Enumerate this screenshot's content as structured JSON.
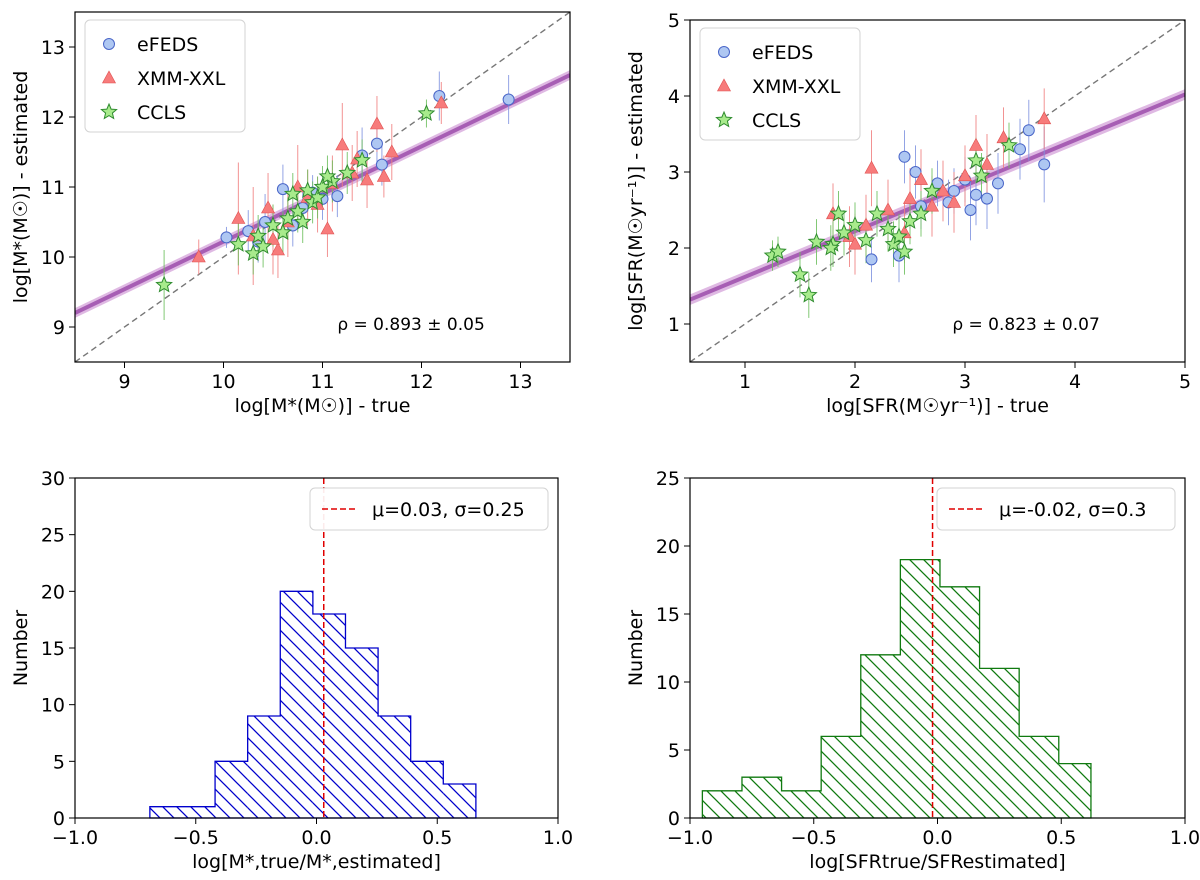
{
  "chart_data": [
    {
      "id": "mass-scatter",
      "type": "scatter",
      "xlabel": "log[M*(M☉)] - true",
      "ylabel": "log[M*(M☉)] - estimated",
      "xlim": [
        8.5,
        13.5
      ],
      "ylim": [
        8.5,
        13.5
      ],
      "xticks": [
        9,
        10,
        11,
        12,
        13
      ],
      "yticks": [
        9,
        10,
        11,
        12,
        13
      ],
      "legend_position": "top-left",
      "annotation": "ρ = 0.893 ± 0.05",
      "fit": {
        "slope": 0.68,
        "intercept": 3.42,
        "band": 0.07
      },
      "series": [
        {
          "name": "eFEDS",
          "marker": "circle",
          "color": "#aec7f2",
          "edge": "#4a66c8",
          "errcolor": "#8093e0",
          "points": [
            [
              10.03,
              10.28,
              0.15
            ],
            [
              10.25,
              10.37,
              0.3
            ],
            [
              10.42,
              10.5,
              0.4
            ],
            [
              10.6,
              10.97,
              0.35
            ],
            [
              10.8,
              10.7,
              0.3
            ],
            [
              10.9,
              10.92,
              0.25
            ],
            [
              11.0,
              10.83,
              0.3
            ],
            [
              11.15,
              10.87,
              0.3
            ],
            [
              11.4,
              11.45,
              0.4
            ],
            [
              11.55,
              11.62,
              0.3
            ],
            [
              11.6,
              11.32,
              0.3
            ],
            [
              12.18,
              12.3,
              0.35
            ],
            [
              12.88,
              12.25,
              0.35
            ],
            [
              10.35,
              10.22,
              0.3
            ],
            [
              10.7,
              10.45,
              0.3
            ]
          ]
        },
        {
          "name": "XMM-XXL",
          "marker": "triangle",
          "color": "#f77b7b",
          "edge": "#e05050",
          "errcolor": "#f08080",
          "points": [
            [
              9.75,
              10.0,
              0.25
            ],
            [
              10.15,
              10.55,
              0.8
            ],
            [
              10.3,
              10.3,
              0.7
            ],
            [
              10.45,
              10.7,
              0.5
            ],
            [
              10.55,
              10.1,
              0.4
            ],
            [
              10.65,
              10.5,
              0.5
            ],
            [
              10.75,
              11.0,
              0.6
            ],
            [
              10.85,
              10.85,
              0.4
            ],
            [
              10.95,
              10.75,
              0.4
            ],
            [
              11.05,
              10.4,
              0.4
            ],
            [
              11.1,
              11.05,
              0.4
            ],
            [
              11.2,
              11.6,
              0.6
            ],
            [
              11.3,
              11.2,
              0.4
            ],
            [
              11.45,
              11.1,
              0.4
            ],
            [
              11.55,
              11.9,
              0.4
            ],
            [
              11.62,
              11.15,
              0.3
            ],
            [
              11.7,
              11.5,
              0.4
            ],
            [
              12.2,
              12.2,
              0.3
            ],
            [
              10.5,
              10.25,
              0.5
            ],
            [
              11.35,
              11.4,
              0.4
            ]
          ]
        },
        {
          "name": "CCLS",
          "marker": "star",
          "color": "#a8eb8c",
          "edge": "#2f8c2f",
          "errcolor": "#6dbf5d",
          "points": [
            [
              9.4,
              9.6,
              0.5
            ],
            [
              10.15,
              10.18,
              0.3
            ],
            [
              10.3,
              10.05,
              0.3
            ],
            [
              10.35,
              10.3,
              0.3
            ],
            [
              10.5,
              10.45,
              0.3
            ],
            [
              10.6,
              10.35,
              0.3
            ],
            [
              10.65,
              10.55,
              0.3
            ],
            [
              10.75,
              10.65,
              0.3
            ],
            [
              10.8,
              10.5,
              0.3
            ],
            [
              10.9,
              10.78,
              0.3
            ],
            [
              10.95,
              10.85,
              0.3
            ],
            [
              11.0,
              11.0,
              0.3
            ],
            [
              11.1,
              11.08,
              0.3
            ],
            [
              11.25,
              11.2,
              0.3
            ],
            [
              11.4,
              11.38,
              0.3
            ],
            [
              12.05,
              12.05,
              0.2
            ],
            [
              10.4,
              10.15,
              0.3
            ],
            [
              10.7,
              10.9,
              0.3
            ],
            [
              10.85,
              10.95,
              0.3
            ],
            [
              11.05,
              11.15,
              0.3
            ]
          ]
        }
      ]
    },
    {
      "id": "sfr-scatter",
      "type": "scatter",
      "xlabel": "log[SFR(M☉yr⁻¹)] - true",
      "ylabel": "log[SFR(M☉yr⁻¹)] - estimated",
      "xlim": [
        0.5,
        5.0
      ],
      "ylim": [
        0.5,
        5.0
      ],
      "xticks": [
        1,
        2,
        3,
        4,
        5
      ],
      "yticks": [
        1,
        2,
        3,
        4,
        5
      ],
      "legend_position": "top-left",
      "annotation": "ρ = 0.823 ± 0.07",
      "fit": {
        "slope": 0.6,
        "intercept": 1.02,
        "band": 0.07
      },
      "series": [
        {
          "name": "eFEDS",
          "marker": "circle",
          "color": "#aec7f2",
          "edge": "#4a66c8",
          "errcolor": "#8093e0",
          "points": [
            [
              2.15,
              1.85,
              0.3
            ],
            [
              2.4,
              1.9,
              0.35
            ],
            [
              2.45,
              3.2,
              0.35
            ],
            [
              2.55,
              3.0,
              0.35
            ],
            [
              2.6,
              2.55,
              0.3
            ],
            [
              2.75,
              2.85,
              0.3
            ],
            [
              2.85,
              2.6,
              0.3
            ],
            [
              2.9,
              2.75,
              0.3
            ],
            [
              3.05,
              2.5,
              0.4
            ],
            [
              3.1,
              2.7,
              0.4
            ],
            [
              3.2,
              2.65,
              0.4
            ],
            [
              3.3,
              2.85,
              0.4
            ],
            [
              3.5,
              3.3,
              0.4
            ],
            [
              3.58,
              3.55,
              0.4
            ],
            [
              3.72,
              3.1,
              0.5
            ],
            [
              3.0,
              2.9,
              0.3
            ]
          ]
        },
        {
          "name": "XMM-XXL",
          "marker": "triangle",
          "color": "#f77b7b",
          "edge": "#e05050",
          "errcolor": "#f08080",
          "points": [
            [
              1.8,
              2.45,
              0.4
            ],
            [
              1.95,
              2.15,
              0.4
            ],
            [
              2.1,
              2.3,
              0.4
            ],
            [
              2.15,
              3.05,
              0.5
            ],
            [
              2.3,
              2.5,
              0.4
            ],
            [
              2.45,
              2.2,
              0.4
            ],
            [
              2.6,
              2.9,
              0.4
            ],
            [
              2.7,
              2.55,
              0.4
            ],
            [
              2.8,
              2.75,
              0.4
            ],
            [
              2.9,
              2.6,
              0.4
            ],
            [
              3.0,
              2.95,
              0.4
            ],
            [
              3.1,
              3.35,
              0.4
            ],
            [
              3.2,
              3.1,
              0.4
            ],
            [
              3.35,
              3.45,
              0.4
            ],
            [
              3.72,
              3.7,
              0.4
            ],
            [
              2.0,
              2.05,
              0.4
            ],
            [
              2.5,
              2.65,
              0.4
            ]
          ]
        },
        {
          "name": "CCLS",
          "marker": "star",
          "color": "#a8eb8c",
          "edge": "#2f8c2f",
          "errcolor": "#6dbf5d",
          "points": [
            [
              1.25,
              1.9,
              0.2
            ],
            [
              1.3,
              1.95,
              0.2
            ],
            [
              1.5,
              1.65,
              0.3
            ],
            [
              1.58,
              1.38,
              0.3
            ],
            [
              1.65,
              2.08,
              0.3
            ],
            [
              1.8,
              2.05,
              0.3
            ],
            [
              1.85,
              2.45,
              0.3
            ],
            [
              1.9,
              2.2,
              0.3
            ],
            [
              2.0,
              2.3,
              0.3
            ],
            [
              2.1,
              2.1,
              0.3
            ],
            [
              2.2,
              2.45,
              0.3
            ],
            [
              2.3,
              2.25,
              0.3
            ],
            [
              2.35,
              2.05,
              0.3
            ],
            [
              2.4,
              2.15,
              0.3
            ],
            [
              2.5,
              2.35,
              0.3
            ],
            [
              2.6,
              2.45,
              0.3
            ],
            [
              2.7,
              2.75,
              0.3
            ],
            [
              3.1,
              3.15,
              0.3
            ],
            [
              3.15,
              2.95,
              0.3
            ],
            [
              3.4,
              3.35,
              0.3
            ],
            [
              1.78,
              2.0,
              0.3
            ],
            [
              2.45,
              1.95,
              0.3
            ]
          ]
        }
      ]
    },
    {
      "id": "mass-hist",
      "type": "bar",
      "style": "step-histogram",
      "color": "#0000cc",
      "hatch": "backslash",
      "xlabel": "log[M*,true/M*,estimated]",
      "ylabel": "Number",
      "xlim": [
        -1.0,
        1.0
      ],
      "ylim": [
        0,
        30
      ],
      "xticks": [
        -1.0,
        -0.5,
        0.0,
        0.5,
        1.0
      ],
      "yticks": [
        0,
        5,
        10,
        15,
        20,
        25,
        30
      ],
      "bin_edges": [
        -0.69,
        -0.555,
        -0.42,
        -0.285,
        -0.15,
        -0.015,
        0.12,
        0.255,
        0.39,
        0.525,
        0.66
      ],
      "counts": [
        1,
        1,
        5,
        9,
        20,
        18,
        15,
        9,
        5,
        3
      ],
      "vline": {
        "value": 0.03,
        "color": "#e00000",
        "label": "μ=0.03, σ=0.25"
      },
      "legend_position": "top-right"
    },
    {
      "id": "sfr-hist",
      "type": "bar",
      "style": "step-histogram",
      "color": "#107a10",
      "hatch": "backslash",
      "xlabel": "log[SFRtrue/SFRestimated]",
      "ylabel": "Number",
      "xlim": [
        -1.0,
        1.0
      ],
      "ylim": [
        0,
        25
      ],
      "xticks": [
        -1.0,
        -0.5,
        0.0,
        0.5,
        1.0
      ],
      "yticks": [
        0,
        5,
        10,
        15,
        20,
        25
      ],
      "bin_edges": [
        -0.95,
        -0.79,
        -0.63,
        -0.47,
        -0.31,
        -0.15,
        0.01,
        0.17,
        0.33,
        0.49,
        0.62
      ],
      "counts": [
        2,
        3,
        2,
        6,
        12,
        19,
        17,
        11,
        6,
        4
      ],
      "vline": {
        "value": -0.02,
        "color": "#e00000",
        "label": "μ=-0.02, σ=0.3"
      },
      "legend_position": "top-right"
    }
  ]
}
